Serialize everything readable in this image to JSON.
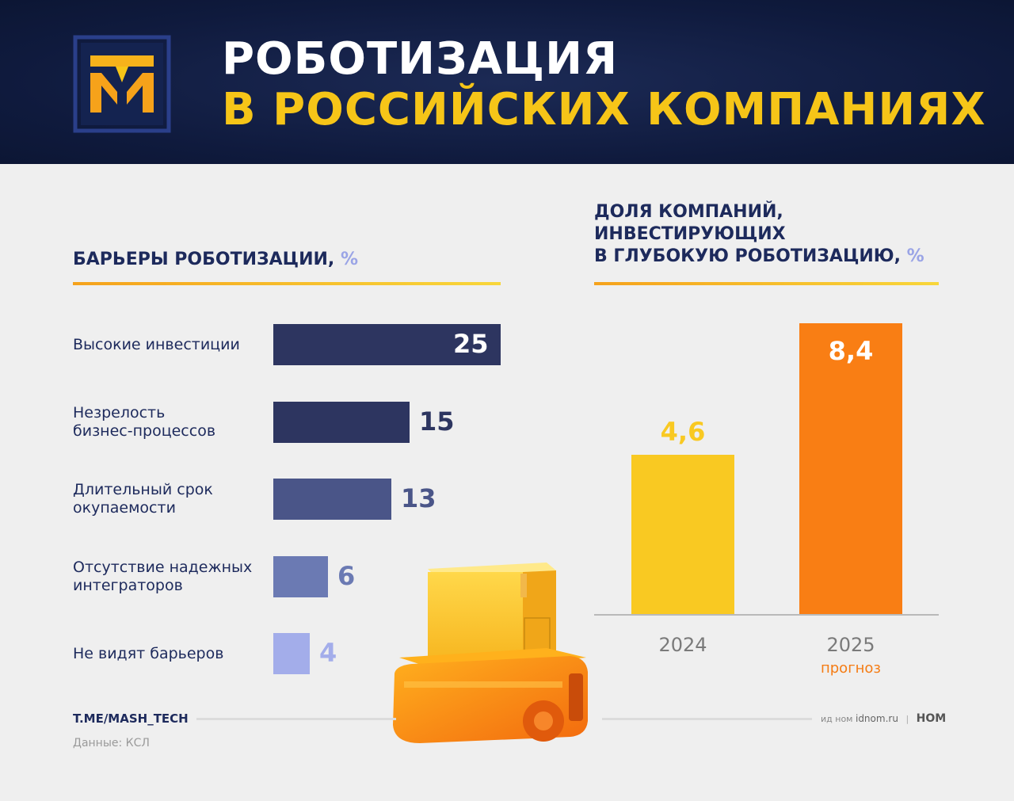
{
  "header": {
    "title_line1": "РОБОТИЗАЦИЯ",
    "title_line2": "В РОССИЙСКИХ КОМПАНИЯХ",
    "logo_text": "ТМ"
  },
  "barriers": {
    "title": "БАРЬЕРЫ РОБОТИЗАЦИИ,",
    "unit": "%"
  },
  "invest": {
    "title_line1": "ДОЛЯ КОМПАНИЙ,",
    "title_line2": "ИНВЕСТИРУЮЩИХ",
    "title_line3": "В ГЛУБОКУЮ РОБОТИЗАЦИЮ,",
    "unit": "%",
    "forecast_label": "прогноз"
  },
  "chart_data": [
    {
      "type": "bar",
      "orientation": "horizontal",
      "title": "БАРЬЕРЫ РОБОТИЗАЦИИ, %",
      "categories": [
        [
          "Высокие инвестиции"
        ],
        [
          "Незрелость",
          "бизнес-процессов"
        ],
        [
          "Длительный срок",
          "окупаемости"
        ],
        [
          "Отсутствие надежных",
          "интеграторов"
        ],
        [
          "Не видят барьеров"
        ]
      ],
      "values": [
        25,
        15,
        13,
        6,
        4
      ],
      "value_labels": [
        "25",
        "15",
        "13",
        "6",
        "4"
      ],
      "colors": [
        "#2d3560",
        "#2d3560",
        "#4a5588",
        "#6b7ab3",
        "#a3adea"
      ],
      "xlim": [
        0,
        25
      ]
    },
    {
      "type": "bar",
      "orientation": "vertical",
      "title": "ДОЛЯ КОМПАНИЙ, ИНВЕСТИРУЮЩИХ В ГЛУБОКУЮ РОБОТИЗАЦИЮ, %",
      "categories": [
        "2024",
        "2025"
      ],
      "values": [
        4.6,
        8.4
      ],
      "value_labels": [
        "4,6",
        "8,4"
      ],
      "colors": [
        "#f9c922",
        "#f97e14"
      ],
      "ylim": [
        0,
        8.4
      ]
    }
  ],
  "footer": {
    "link": "T.ME/MASH_TECH",
    "source": "Данные: КСЛ",
    "brand_small": "ид ном",
    "brand_site": "idnom.ru",
    "brand_sep": "|",
    "brand_logo": "НОМ"
  },
  "colors": {
    "navy": "#0f1a3d",
    "title_yellow": "#f6c518",
    "label_navy": "#1d2a5c"
  }
}
